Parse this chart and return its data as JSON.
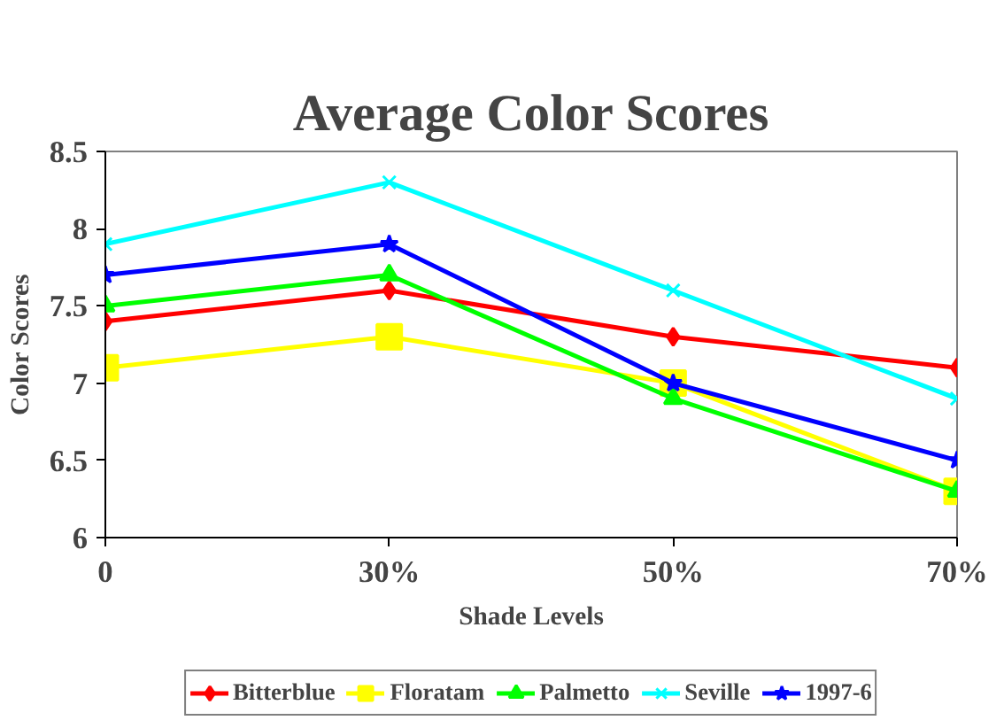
{
  "chart_data": {
    "type": "line",
    "title": "Average Color Scores",
    "xlabel": "Shade Levels",
    "ylabel": "Color Scores",
    "categories": [
      "0",
      "30%",
      "50%",
      "70%"
    ],
    "ylim": [
      6,
      8.5
    ],
    "yticks": [
      6,
      6.5,
      7,
      7.5,
      8,
      8.5
    ],
    "grid": false,
    "legend": "bottom",
    "series": [
      {
        "name": "Bitterblue",
        "color": "#ff0000",
        "marker": "diamond",
        "values": [
          7.4,
          7.6,
          7.3,
          7.1
        ]
      },
      {
        "name": "Floratam",
        "color": "#ffff00",
        "marker": "square",
        "values": [
          7.1,
          7.3,
          7.0,
          6.3
        ]
      },
      {
        "name": "Palmetto",
        "color": "#00ff00",
        "marker": "triangle",
        "values": [
          7.5,
          7.7,
          6.9,
          6.3
        ]
      },
      {
        "name": "Seville",
        "color": "#00ffff",
        "marker": "cross",
        "values": [
          7.9,
          8.3,
          7.6,
          6.9
        ]
      },
      {
        "name": "1997-6",
        "color": "#0000ff",
        "marker": "star",
        "values": [
          7.7,
          7.9,
          7.0,
          6.5
        ]
      }
    ]
  }
}
